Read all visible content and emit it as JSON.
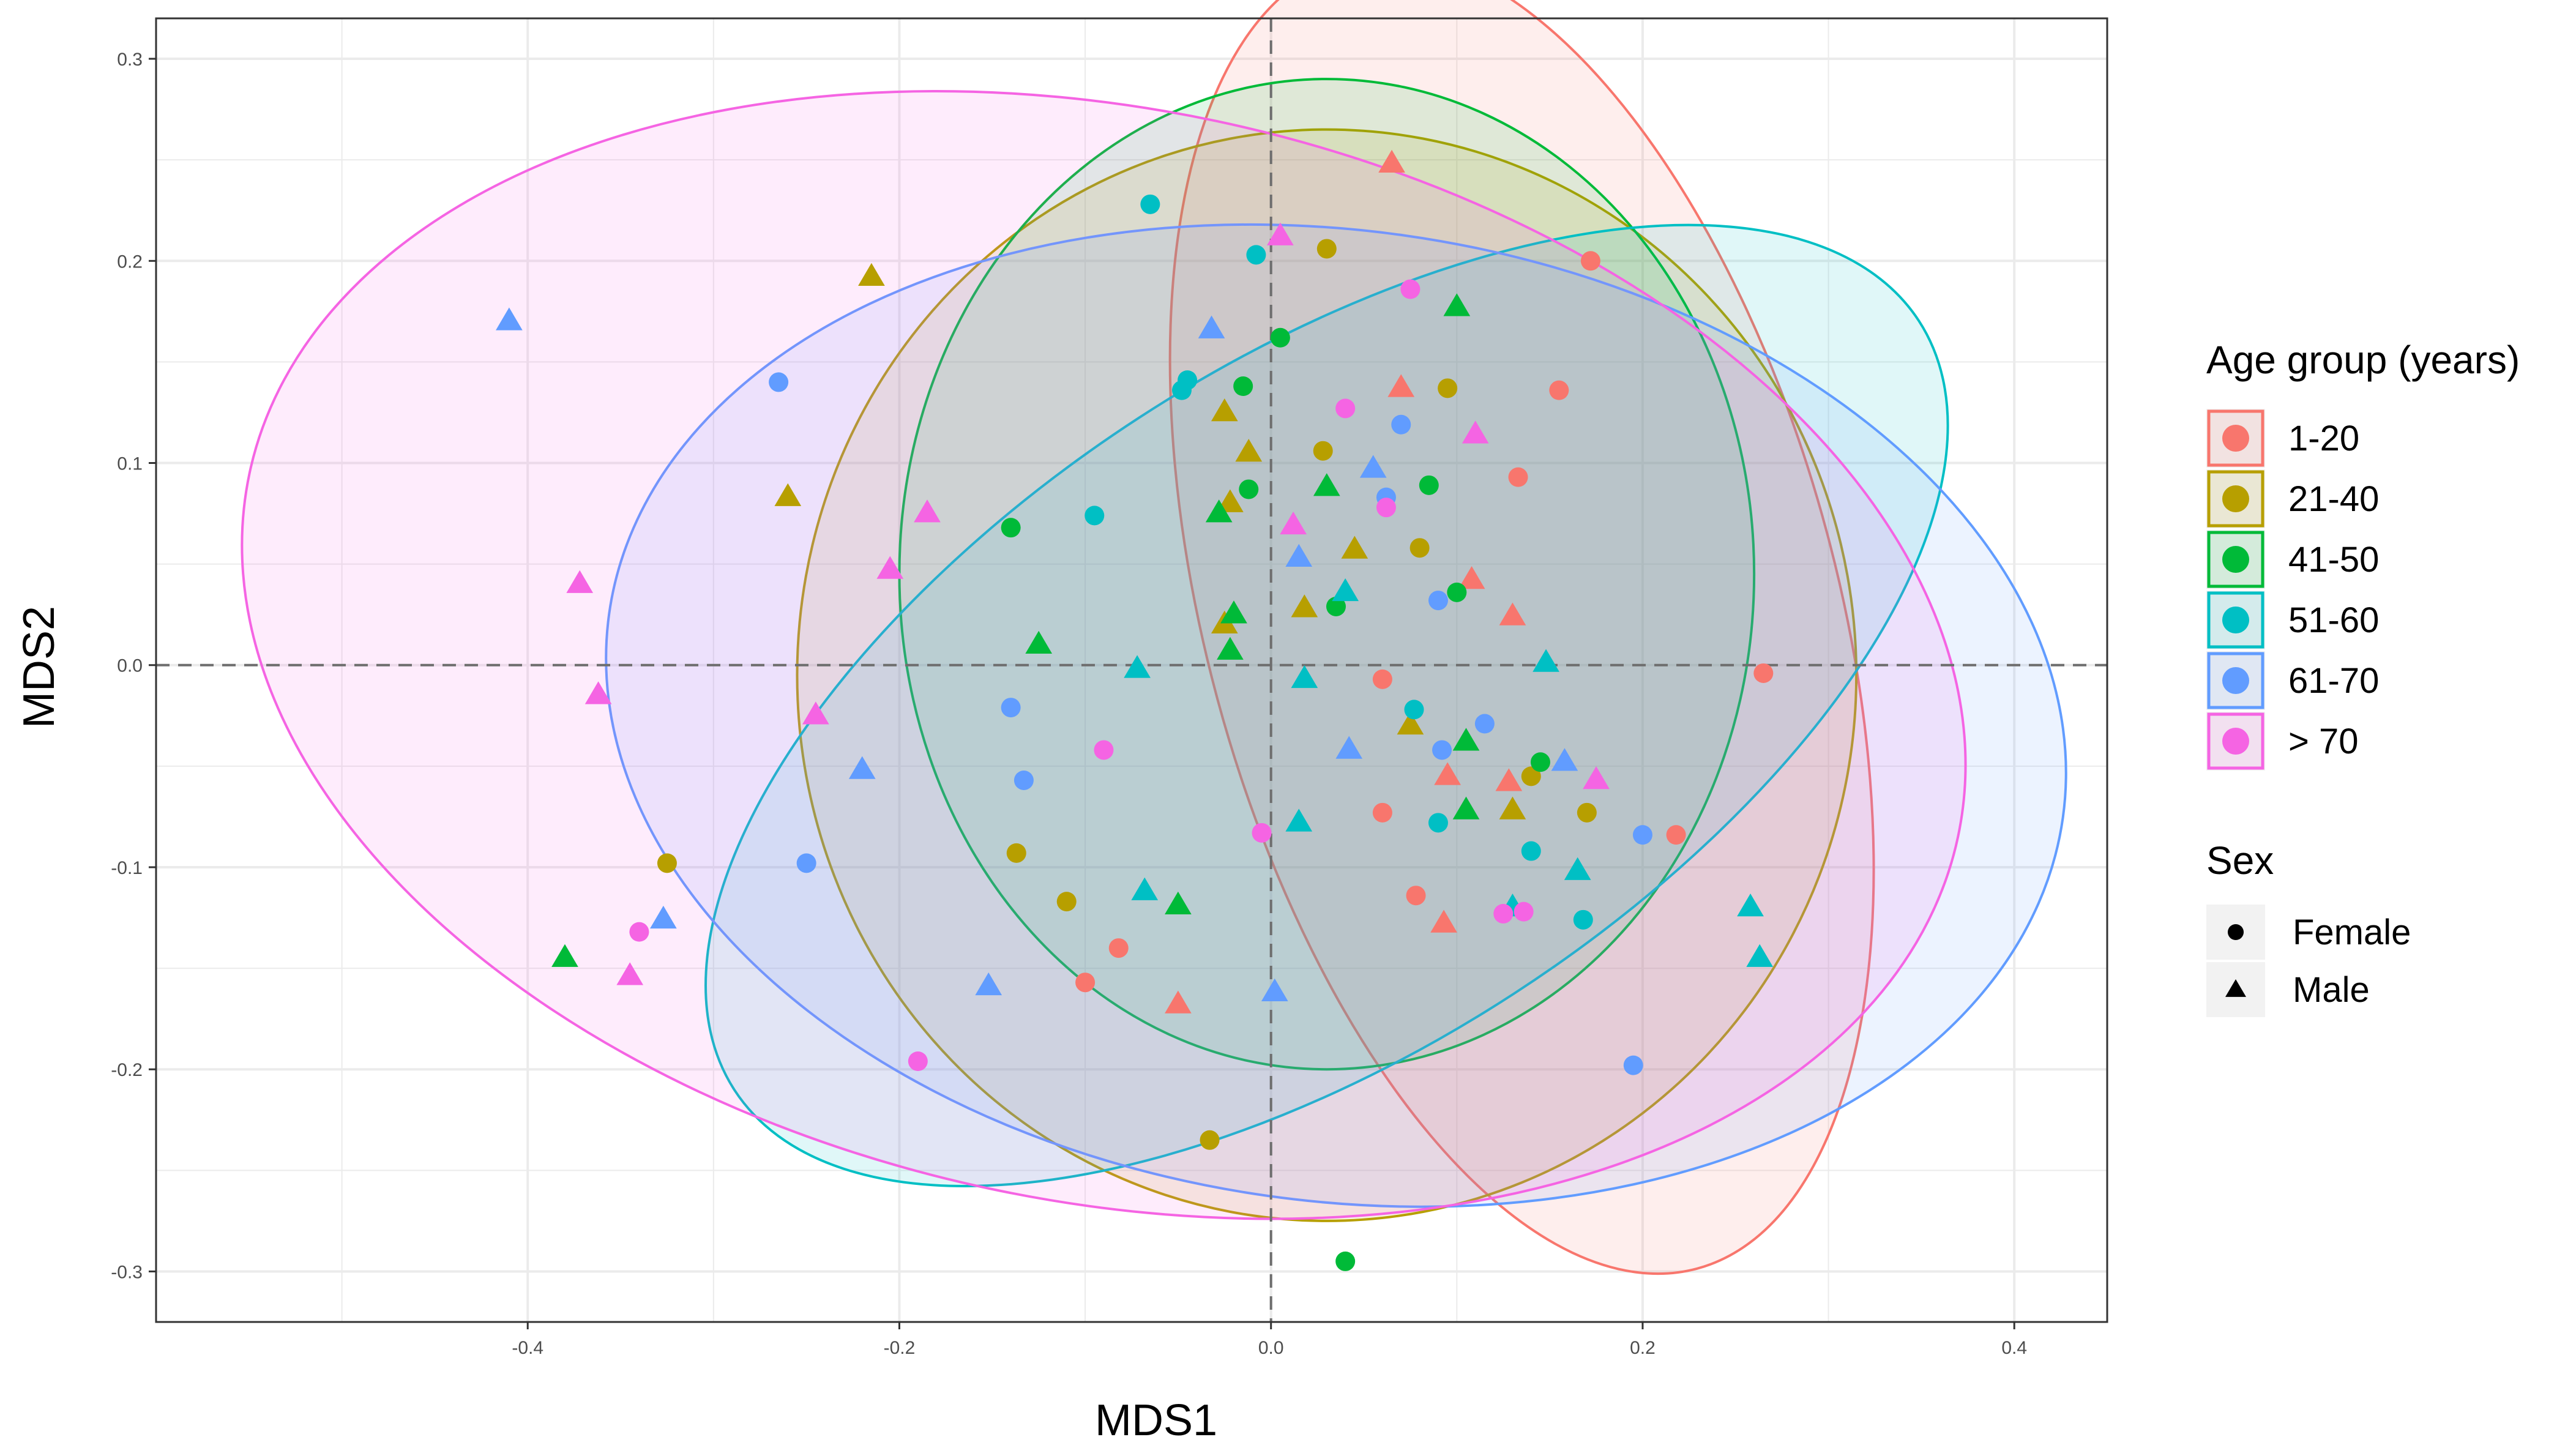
{
  "chart_data": {
    "type": "scatter",
    "title": "",
    "xlabel": "MDS1",
    "ylabel": "MDS2",
    "xlim": [
      -0.6,
      0.45
    ],
    "ylim": [
      -0.325,
      0.32
    ],
    "x_ticks": [
      -0.4,
      -0.2,
      0.0,
      0.2,
      0.4
    ],
    "x_tick_labels": [
      "-0.4",
      "-0.2",
      "0.0",
      "0.2",
      "0.4"
    ],
    "y_ticks": [
      -0.3,
      -0.2,
      -0.1,
      0.0,
      0.1,
      0.2,
      0.3
    ],
    "y_tick_labels": [
      "-0.3",
      "-0.2",
      "-0.1",
      "0.0",
      "0.1",
      "0.2",
      "0.3"
    ],
    "grid": true,
    "reference_lines": {
      "x": 0,
      "y": 0,
      "style": "dashed"
    },
    "legend_position": "right",
    "legends": {
      "color": {
        "title": "Age group (years)",
        "entries": [
          {
            "label": "1-20",
            "color": "#F8766D"
          },
          {
            "label": "21-40",
            "color": "#B79F00"
          },
          {
            "label": "41-50",
            "color": "#00BA38"
          },
          {
            "label": "51-60",
            "color": "#00BFC4"
          },
          {
            "label": "61-70",
            "color": "#619CFF"
          },
          {
            "label": "> 70",
            "color": "#F564E3"
          }
        ]
      },
      "shape": {
        "title": "Sex",
        "entries": [
          {
            "label": "Female",
            "shape": "circle"
          },
          {
            "label": "Male",
            "shape": "triangle"
          }
        ]
      }
    },
    "ellipses": [
      {
        "group": "1-20",
        "cx": 0.135,
        "cy": 0.025,
        "rx": 0.17,
        "ry": 0.335,
        "angle_deg": -15
      },
      {
        "group": "21-40",
        "cx": 0.03,
        "cy": -0.005,
        "rx": 0.285,
        "ry": 0.27,
        "angle_deg": 0
      },
      {
        "group": "41-50",
        "cx": 0.03,
        "cy": 0.045,
        "rx": 0.23,
        "ry": 0.245,
        "angle_deg": 0
      },
      {
        "group": "51-60",
        "cx": 0.03,
        "cy": -0.02,
        "rx": 0.38,
        "ry": 0.17,
        "angle_deg": -33
      },
      {
        "group": "61-70",
        "cx": 0.035,
        "cy": -0.025,
        "rx": 0.395,
        "ry": 0.24,
        "angle_deg": 8
      },
      {
        "group": "> 70",
        "cx": -0.09,
        "cy": 0.005,
        "rx": 0.47,
        "ry": 0.27,
        "angle_deg": 12
      }
    ],
    "series": [
      {
        "name": "1-20",
        "color": "#F8766D",
        "points": [
          [
            0.065,
            0.248,
            "M"
          ],
          [
            0.172,
            0.2,
            "F"
          ],
          [
            0.155,
            0.136,
            "F"
          ],
          [
            0.133,
            0.093,
            "F"
          ],
          [
            0.108,
            0.042,
            "M"
          ],
          [
            0.13,
            0.024,
            "M"
          ],
          [
            0.265,
            -0.004,
            "F"
          ],
          [
            0.06,
            -0.007,
            "F"
          ],
          [
            0.095,
            -0.055,
            "M"
          ],
          [
            0.128,
            -0.058,
            "M"
          ],
          [
            0.06,
            -0.073,
            "F"
          ],
          [
            0.078,
            -0.114,
            "F"
          ],
          [
            0.093,
            -0.128,
            "M"
          ],
          [
            0.218,
            -0.084,
            "F"
          ],
          [
            -0.082,
            -0.14,
            "F"
          ],
          [
            -0.1,
            -0.157,
            "F"
          ],
          [
            -0.05,
            -0.168,
            "M"
          ],
          [
            0.07,
            0.137,
            "M"
          ]
        ]
      },
      {
        "name": "21-40",
        "color": "#B79F00",
        "points": [
          [
            -0.215,
            0.192,
            "M"
          ],
          [
            0.03,
            0.206,
            "F"
          ],
          [
            0.095,
            0.137,
            "F"
          ],
          [
            0.028,
            0.106,
            "F"
          ],
          [
            -0.012,
            0.105,
            "M"
          ],
          [
            -0.025,
            0.125,
            "M"
          ],
          [
            -0.022,
            0.08,
            "M"
          ],
          [
            0.045,
            0.057,
            "M"
          ],
          [
            0.08,
            0.058,
            "F"
          ],
          [
            0.018,
            0.028,
            "M"
          ],
          [
            -0.025,
            0.02,
            "M"
          ],
          [
            -0.26,
            0.083,
            "M"
          ],
          [
            -0.325,
            -0.098,
            "F"
          ],
          [
            -0.137,
            -0.093,
            "F"
          ],
          [
            -0.11,
            -0.117,
            "F"
          ],
          [
            0.075,
            -0.03,
            "M"
          ],
          [
            0.14,
            -0.055,
            "F"
          ],
          [
            0.13,
            -0.072,
            "M"
          ],
          [
            0.17,
            -0.073,
            "F"
          ],
          [
            -0.033,
            -0.235,
            "F"
          ]
        ]
      },
      {
        "name": "41-50",
        "color": "#00BA38",
        "points": [
          [
            0.1,
            0.177,
            "M"
          ],
          [
            0.005,
            0.162,
            "F"
          ],
          [
            -0.015,
            0.138,
            "F"
          ],
          [
            0.085,
            0.089,
            "F"
          ],
          [
            -0.012,
            0.087,
            "F"
          ],
          [
            0.03,
            0.088,
            "M"
          ],
          [
            -0.028,
            0.075,
            "M"
          ],
          [
            -0.14,
            0.068,
            "F"
          ],
          [
            0.1,
            0.036,
            "F"
          ],
          [
            0.035,
            0.029,
            "F"
          ],
          [
            -0.02,
            0.025,
            "M"
          ],
          [
            -0.125,
            0.01,
            "M"
          ],
          [
            -0.022,
            0.007,
            "M"
          ],
          [
            0.105,
            -0.038,
            "M"
          ],
          [
            0.145,
            -0.048,
            "F"
          ],
          [
            0.105,
            -0.072,
            "M"
          ],
          [
            -0.05,
            -0.119,
            "M"
          ],
          [
            -0.38,
            -0.145,
            "M"
          ],
          [
            0.04,
            -0.295,
            "F"
          ]
        ]
      },
      {
        "name": "51-60",
        "color": "#00BFC4",
        "points": [
          [
            -0.065,
            0.228,
            "F"
          ],
          [
            -0.008,
            0.203,
            "F"
          ],
          [
            -0.045,
            0.141,
            "F"
          ],
          [
            -0.048,
            0.136,
            "F"
          ],
          [
            -0.095,
            0.074,
            "F"
          ],
          [
            0.04,
            0.036,
            "M"
          ],
          [
            0.148,
            0.001,
            "M"
          ],
          [
            -0.072,
            -0.002,
            "M"
          ],
          [
            0.018,
            -0.007,
            "M"
          ],
          [
            0.077,
            -0.022,
            "F"
          ],
          [
            0.09,
            -0.078,
            "F"
          ],
          [
            0.14,
            -0.092,
            "F"
          ],
          [
            0.165,
            -0.102,
            "M"
          ],
          [
            0.13,
            -0.12,
            "M"
          ],
          [
            0.168,
            -0.126,
            "F"
          ],
          [
            0.258,
            -0.12,
            "M"
          ],
          [
            0.263,
            -0.145,
            "M"
          ],
          [
            -0.068,
            -0.112,
            "M"
          ],
          [
            0.015,
            -0.078,
            "M"
          ]
        ]
      },
      {
        "name": "61-70",
        "color": "#619CFF",
        "points": [
          [
            -0.41,
            0.17,
            "M"
          ],
          [
            -0.265,
            0.14,
            "F"
          ],
          [
            -0.032,
            0.166,
            "M"
          ],
          [
            0.07,
            0.119,
            "F"
          ],
          [
            0.055,
            0.097,
            "M"
          ],
          [
            0.062,
            0.083,
            "F"
          ],
          [
            0.015,
            0.053,
            "M"
          ],
          [
            0.09,
            0.032,
            "F"
          ],
          [
            -0.14,
            -0.021,
            "F"
          ],
          [
            0.115,
            -0.029,
            "F"
          ],
          [
            0.042,
            -0.042,
            "M"
          ],
          [
            0.092,
            -0.042,
            "F"
          ],
          [
            0.158,
            -0.048,
            "M"
          ],
          [
            -0.133,
            -0.057,
            "F"
          ],
          [
            -0.22,
            -0.052,
            "M"
          ],
          [
            0.2,
            -0.084,
            "F"
          ],
          [
            -0.25,
            -0.098,
            "F"
          ],
          [
            -0.327,
            -0.126,
            "M"
          ],
          [
            -0.152,
            -0.159,
            "M"
          ],
          [
            0.002,
            -0.162,
            "M"
          ],
          [
            0.195,
            -0.198,
            "F"
          ]
        ]
      },
      {
        "name": "> 70",
        "color": "#F564E3",
        "points": [
          [
            0.005,
            0.212,
            "M"
          ],
          [
            0.075,
            0.186,
            "F"
          ],
          [
            0.04,
            0.127,
            "F"
          ],
          [
            0.11,
            0.114,
            "M"
          ],
          [
            0.062,
            0.078,
            "F"
          ],
          [
            0.012,
            0.069,
            "M"
          ],
          [
            -0.185,
            0.075,
            "M"
          ],
          [
            -0.205,
            0.047,
            "M"
          ],
          [
            -0.372,
            0.04,
            "M"
          ],
          [
            -0.362,
            -0.015,
            "M"
          ],
          [
            -0.245,
            -0.025,
            "M"
          ],
          [
            -0.09,
            -0.042,
            "F"
          ],
          [
            -0.005,
            -0.083,
            "F"
          ],
          [
            0.175,
            -0.057,
            "M"
          ],
          [
            0.125,
            -0.123,
            "F"
          ],
          [
            0.136,
            -0.122,
            "F"
          ],
          [
            -0.34,
            -0.132,
            "F"
          ],
          [
            -0.345,
            -0.154,
            "M"
          ],
          [
            -0.19,
            -0.196,
            "F"
          ]
        ]
      }
    ]
  }
}
